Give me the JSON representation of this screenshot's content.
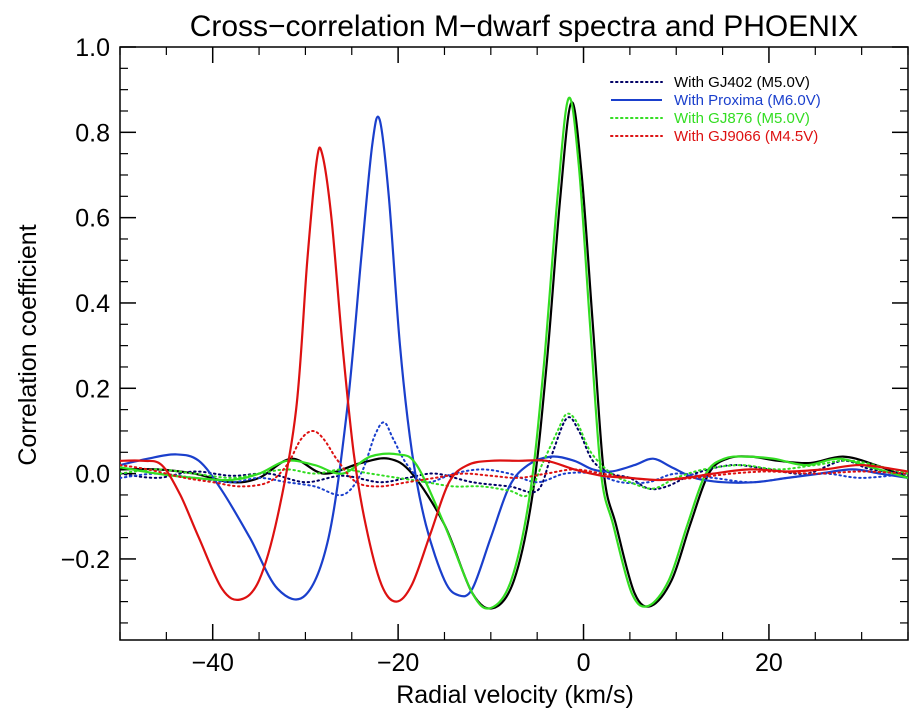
{
  "chart_data": {
    "type": "line",
    "title": "Cross−correlation M−dwarf spectra and PHOENIX",
    "xlabel": "Radial velocity (km/s)",
    "ylabel": "Correlation coefficient",
    "xlim": [
      -50,
      35
    ],
    "ylim": [
      -0.39,
      1.0
    ],
    "x_ticks": [
      -40,
      -20,
      0,
      20
    ],
    "x_tick_labels": [
      "−40",
      "−20",
      "0",
      "20"
    ],
    "y_ticks": [
      -0.2,
      0.0,
      0.2,
      0.4,
      0.6,
      0.8,
      1.0
    ],
    "y_tick_labels": [
      "−0.2",
      "0.0",
      "0.2",
      "0.4",
      "0.6",
      "0.8",
      "1.0"
    ],
    "grid": false,
    "legend_position": "top-right",
    "legend": [
      {
        "label": "With GJ402 (M5.0V)",
        "color": "#000066",
        "style": "dotted",
        "text_color": "#000000"
      },
      {
        "label": "With Proxima (M6.0V)",
        "color": "#1a3fcc",
        "style": "solid",
        "text_color": "#1a3fcc"
      },
      {
        "label": "With GJ876 (M5.0V)",
        "color": "#33dd22",
        "style": "dotted",
        "text_color": "#33dd22"
      },
      {
        "label": "With GJ9066 (M4.5V)",
        "color": "#dd1111",
        "style": "dotted",
        "text_color": "#dd1111"
      }
    ],
    "series": [
      {
        "color": "#000000",
        "style": "solid",
        "width": 2.2,
        "points": [
          [
            -50,
            0.01
          ],
          [
            -46,
            0.01
          ],
          [
            -42,
            0.0
          ],
          [
            -38,
            -0.02
          ],
          [
            -35,
            -0.01
          ],
          [
            -31.5,
            0.035
          ],
          [
            -28,
            0.0
          ],
          [
            -24,
            0.025
          ],
          [
            -21,
            0.035
          ],
          [
            -18.5,
            0.0
          ],
          [
            -15,
            -0.12
          ],
          [
            -12,
            -0.28
          ],
          [
            -9.7,
            -0.315
          ],
          [
            -7.5,
            -0.25
          ],
          [
            -5.5,
            -0.05
          ],
          [
            -4,
            0.25
          ],
          [
            -2.5,
            0.65
          ],
          [
            -1.3,
            0.87
          ],
          [
            -0.2,
            0.7
          ],
          [
            1,
            0.35
          ],
          [
            2.2,
            0.0
          ],
          [
            3.5,
            -0.12
          ],
          [
            5.5,
            -0.28
          ],
          [
            7.3,
            -0.31
          ],
          [
            9.5,
            -0.25
          ],
          [
            11.5,
            -0.12
          ],
          [
            13.5,
            0.0
          ],
          [
            15.5,
            0.035
          ],
          [
            18,
            0.04
          ],
          [
            21,
            0.03
          ],
          [
            24.5,
            0.025
          ],
          [
            28,
            0.04
          ],
          [
            31.5,
            0.02
          ],
          [
            35,
            -0.01
          ]
        ]
      },
      {
        "color": "#000066",
        "style": "dotted",
        "width": 2,
        "points": [
          [
            -50,
            0.0
          ],
          [
            -46,
            -0.01
          ],
          [
            -42,
            0.005
          ],
          [
            -38,
            -0.005
          ],
          [
            -34,
            0.0
          ],
          [
            -30,
            -0.02
          ],
          [
            -26,
            -0.005
          ],
          [
            -22,
            -0.02
          ],
          [
            -19,
            -0.01
          ],
          [
            -16,
            0.0
          ],
          [
            -12,
            -0.02
          ],
          [
            -8,
            -0.03
          ],
          [
            -5,
            -0.04
          ],
          [
            -3.5,
            0.04
          ],
          [
            -1.8,
            0.13
          ],
          [
            -0.5,
            0.1
          ],
          [
            1,
            0.03
          ],
          [
            3,
            0.0
          ],
          [
            5,
            -0.01
          ],
          [
            7,
            -0.035
          ],
          [
            9,
            -0.03
          ],
          [
            12,
            0.0
          ],
          [
            16,
            0.02
          ],
          [
            20,
            0.01
          ],
          [
            24,
            0.0
          ],
          [
            28,
            0.03
          ],
          [
            31,
            0.01
          ],
          [
            35,
            0.0
          ]
        ]
      },
      {
        "color": "#1a3fcc",
        "style": "solid",
        "width": 2.2,
        "points": [
          [
            -50,
            0.02
          ],
          [
            -47,
            0.035
          ],
          [
            -44,
            0.045
          ],
          [
            -41.5,
            0.03
          ],
          [
            -39,
            -0.04
          ],
          [
            -36,
            -0.15
          ],
          [
            -33,
            -0.27
          ],
          [
            -30,
            -0.285
          ],
          [
            -27.5,
            -0.15
          ],
          [
            -25.5,
            0.15
          ],
          [
            -24,
            0.5
          ],
          [
            -22.8,
            0.77
          ],
          [
            -22,
            0.83
          ],
          [
            -21,
            0.65
          ],
          [
            -19.8,
            0.3
          ],
          [
            -18.5,
            0.05
          ],
          [
            -17,
            -0.12
          ],
          [
            -15,
            -0.25
          ],
          [
            -13.5,
            -0.285
          ],
          [
            -12,
            -0.27
          ],
          [
            -10,
            -0.15
          ],
          [
            -8,
            -0.03
          ],
          [
            -6,
            0.02
          ],
          [
            -3.5,
            0.04
          ],
          [
            -1,
            0.03
          ],
          [
            1,
            0.01
          ],
          [
            3,
            0.005
          ],
          [
            5.5,
            0.02
          ],
          [
            7.5,
            0.035
          ],
          [
            9.5,
            0.015
          ],
          [
            12,
            -0.01
          ],
          [
            15,
            -0.02
          ],
          [
            18.5,
            -0.02
          ],
          [
            22,
            -0.01
          ],
          [
            25.5,
            0.0
          ],
          [
            29,
            0.01
          ],
          [
            32,
            0.0
          ],
          [
            35,
            -0.01
          ]
        ]
      },
      {
        "color": "#1a3fcc",
        "style": "dotted",
        "width": 2,
        "points": [
          [
            -50,
            -0.01
          ],
          [
            -46,
            0.0
          ],
          [
            -42,
            -0.01
          ],
          [
            -38,
            -0.02
          ],
          [
            -35,
            -0.01
          ],
          [
            -32,
            -0.02
          ],
          [
            -29,
            -0.03
          ],
          [
            -26,
            -0.05
          ],
          [
            -24,
            0.0
          ],
          [
            -22.5,
            0.09
          ],
          [
            -21.5,
            0.12
          ],
          [
            -20.5,
            0.08
          ],
          [
            -19,
            0.02
          ],
          [
            -17,
            -0.02
          ],
          [
            -14,
            0.0
          ],
          [
            -11,
            0.01
          ],
          [
            -8,
            0.0
          ],
          [
            -5,
            -0.02
          ],
          [
            -2,
            0.0
          ],
          [
            1,
            0.0
          ],
          [
            4,
            -0.02
          ],
          [
            7,
            -0.02
          ],
          [
            10,
            0.0
          ],
          [
            14,
            -0.01
          ],
          [
            18,
            -0.02
          ],
          [
            22,
            -0.01
          ],
          [
            26,
            0.0
          ],
          [
            30,
            -0.01
          ],
          [
            35,
            0.0
          ]
        ]
      },
      {
        "color": "#33dd22",
        "style": "solid",
        "width": 2.2,
        "points": [
          [
            -50,
            0.015
          ],
          [
            -46,
            0.0
          ],
          [
            -42,
            -0.01
          ],
          [
            -38,
            -0.015
          ],
          [
            -35,
            0.0
          ],
          [
            -32,
            0.03
          ],
          [
            -29,
            0.02
          ],
          [
            -26,
            0.0
          ],
          [
            -23,
            0.04
          ],
          [
            -20,
            0.045
          ],
          [
            -18,
            0.02
          ],
          [
            -15,
            -0.12
          ],
          [
            -12,
            -0.28
          ],
          [
            -10,
            -0.315
          ],
          [
            -7.8,
            -0.25
          ],
          [
            -5.8,
            -0.05
          ],
          [
            -4.3,
            0.25
          ],
          [
            -2.8,
            0.65
          ],
          [
            -1.6,
            0.88
          ],
          [
            -0.5,
            0.72
          ],
          [
            0.7,
            0.35
          ],
          [
            1.9,
            0.0
          ],
          [
            3.2,
            -0.12
          ],
          [
            5.2,
            -0.28
          ],
          [
            7,
            -0.31
          ],
          [
            9.2,
            -0.25
          ],
          [
            11.2,
            -0.12
          ],
          [
            13.2,
            0.0
          ],
          [
            15.2,
            0.035
          ],
          [
            17.5,
            0.04
          ],
          [
            20.5,
            0.035
          ],
          [
            24,
            0.02
          ],
          [
            27.5,
            0.035
          ],
          [
            31,
            0.015
          ],
          [
            35,
            -0.01
          ]
        ]
      },
      {
        "color": "#33dd22",
        "style": "dotted",
        "width": 2,
        "points": [
          [
            -50,
            0.0
          ],
          [
            -46,
            0.01
          ],
          [
            -42,
            0.0
          ],
          [
            -38,
            -0.01
          ],
          [
            -35,
            0.0
          ],
          [
            -32,
            0.01
          ],
          [
            -29,
            0.0
          ],
          [
            -26,
            0.01
          ],
          [
            -23,
            0.0
          ],
          [
            -20,
            -0.01
          ],
          [
            -17,
            -0.02
          ],
          [
            -14,
            -0.03
          ],
          [
            -11,
            -0.03
          ],
          [
            -8,
            -0.04
          ],
          [
            -6,
            -0.05
          ],
          [
            -4.5,
            0.02
          ],
          [
            -2.8,
            0.1
          ],
          [
            -1.8,
            0.14
          ],
          [
            -0.7,
            0.12
          ],
          [
            0.8,
            0.05
          ],
          [
            3,
            0.0
          ],
          [
            5,
            -0.02
          ],
          [
            7.5,
            -0.035
          ],
          [
            10,
            -0.01
          ],
          [
            13,
            0.01
          ],
          [
            17,
            0.02
          ],
          [
            21,
            0.01
          ],
          [
            25,
            0.02
          ],
          [
            29,
            0.03
          ],
          [
            35,
            0.0
          ]
        ]
      },
      {
        "color": "#dd1111",
        "style": "solid",
        "width": 2.2,
        "points": [
          [
            -50,
            0.03
          ],
          [
            -47.5,
            0.03
          ],
          [
            -45.5,
            0.02
          ],
          [
            -43.5,
            -0.05
          ],
          [
            -41.5,
            -0.15
          ],
          [
            -39,
            -0.27
          ],
          [
            -37,
            -0.295
          ],
          [
            -35,
            -0.25
          ],
          [
            -33,
            -0.1
          ],
          [
            -31,
            0.15
          ],
          [
            -29.8,
            0.5
          ],
          [
            -28.8,
            0.73
          ],
          [
            -28.2,
            0.75
          ],
          [
            -27.2,
            0.6
          ],
          [
            -26,
            0.3
          ],
          [
            -24.8,
            0.05
          ],
          [
            -23.5,
            -0.12
          ],
          [
            -21.8,
            -0.26
          ],
          [
            -20.2,
            -0.3
          ],
          [
            -18.5,
            -0.26
          ],
          [
            -16.5,
            -0.14
          ],
          [
            -14.5,
            -0.02
          ],
          [
            -12.5,
            0.02
          ],
          [
            -10,
            0.03
          ],
          [
            -7,
            0.03
          ],
          [
            -4,
            0.03
          ],
          [
            -1,
            0.01
          ],
          [
            2,
            -0.005
          ],
          [
            5,
            -0.01
          ],
          [
            8,
            -0.015
          ],
          [
            11,
            -0.01
          ],
          [
            14,
            0.0
          ],
          [
            18,
            0.01
          ],
          [
            22,
            0.005
          ],
          [
            26,
            0.01
          ],
          [
            30,
            0.02
          ],
          [
            35,
            0.005
          ]
        ]
      },
      {
        "color": "#dd1111",
        "style": "dotted",
        "width": 2,
        "points": [
          [
            -50,
            0.02
          ],
          [
            -47,
            0.01
          ],
          [
            -43,
            -0.01
          ],
          [
            -40,
            -0.02
          ],
          [
            -37,
            -0.03
          ],
          [
            -34,
            -0.02
          ],
          [
            -32,
            0.02
          ],
          [
            -30.5,
            0.08
          ],
          [
            -29.2,
            0.1
          ],
          [
            -28,
            0.08
          ],
          [
            -26.5,
            0.03
          ],
          [
            -24.5,
            -0.02
          ],
          [
            -22,
            -0.03
          ],
          [
            -19,
            -0.02
          ],
          [
            -16,
            -0.01
          ],
          [
            -13,
            0.0
          ],
          [
            -10,
            -0.005
          ],
          [
            -7,
            -0.01
          ],
          [
            -4,
            0.0
          ],
          [
            -1,
            0.01
          ],
          [
            2,
            0.0
          ],
          [
            5,
            -0.01
          ],
          [
            8,
            -0.015
          ],
          [
            12,
            -0.01
          ],
          [
            16,
            0.0
          ],
          [
            20,
            0.005
          ],
          [
            25,
            0.0
          ],
          [
            30,
            0.005
          ],
          [
            35,
            0.0
          ]
        ]
      }
    ]
  }
}
